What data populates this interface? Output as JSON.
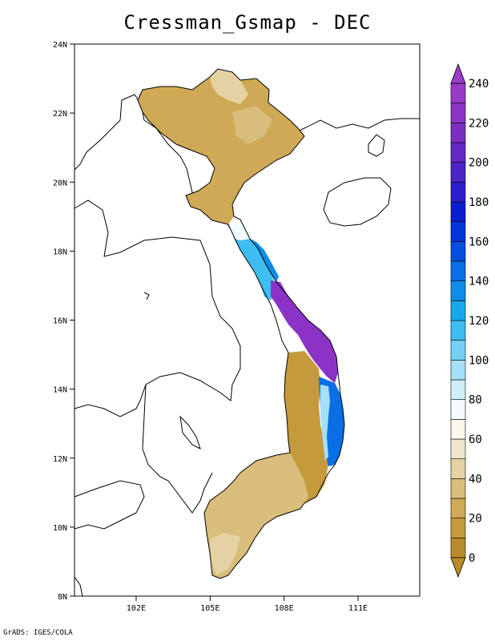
{
  "title": "Cressman_Gsmap - DEC",
  "credit": "GrADS: IGES/COLA",
  "map": {
    "lon_range": [
      99.5,
      113.5
    ],
    "lat_range": [
      8,
      24
    ],
    "lon_ticks": [
      "102E",
      "105E",
      "108E",
      "111E"
    ],
    "lat_ticks": [
      "24N",
      "22N",
      "20N",
      "18N",
      "16N",
      "14N",
      "12N",
      "10N",
      "8N"
    ]
  },
  "colorbar": {
    "labels": [
      "0",
      "20",
      "40",
      "60",
      "80",
      "100",
      "120",
      "140",
      "160",
      "180",
      "200",
      "220",
      "240"
    ],
    "colors": [
      "#b88c2a",
      "#c49a3c",
      "#cfa956",
      "#d9bd7b",
      "#e5d2a4",
      "#f1e6cd",
      "#fbf6ec",
      "#f4fbff",
      "#d0eefa",
      "#a6e0f8",
      "#74cff5",
      "#3dbdf1",
      "#18a7ee",
      "#0f8ce9",
      "#0a6ee4",
      "#064fdd",
      "#0335d6",
      "#0a1ccc",
      "#2a1fc8",
      "#4a24c6",
      "#6428c4",
      "#7a2dc4",
      "#8b33c6",
      "#9a3ac8"
    ]
  }
}
